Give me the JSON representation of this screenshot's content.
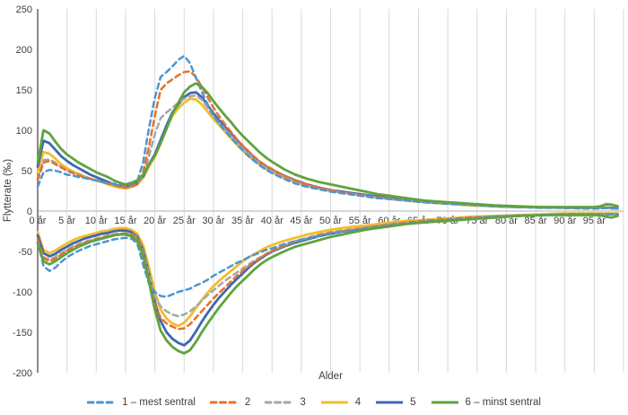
{
  "chart_data": {
    "type": "line",
    "title": "",
    "xlabel": "Alder",
    "ylabel": "Flytterate (‰)",
    "ylim": [
      -200,
      250
    ],
    "x_max": 100,
    "grid": "vertical-only",
    "legend_position": "bottom",
    "y_ticks": [
      250,
      200,
      150,
      100,
      50,
      0,
      -50,
      -100,
      -150,
      -200
    ],
    "x_tick_labels": [
      "0 år",
      "5 år",
      "10 år",
      "15 år",
      "20 år",
      "25 år",
      "30 år",
      "35 år",
      "40 år",
      "45 år",
      "50 år",
      "55 år",
      "60 år",
      "65 år",
      "70 år",
      "75 år",
      "80 år",
      "85 år",
      "90 år",
      "95 år"
    ],
    "axis_colors": {
      "grid": "#d9d9d9",
      "zero_line": "#bfbfbf",
      "y_axis": "#595959",
      "text": "#404040"
    },
    "ages": [
      0,
      1,
      2,
      3,
      4,
      5,
      6,
      7,
      8,
      9,
      10,
      11,
      12,
      13,
      14,
      15,
      16,
      17,
      18,
      19,
      20,
      21,
      22,
      23,
      24,
      25,
      26,
      27,
      28,
      29,
      30,
      31,
      32,
      33,
      34,
      35,
      36,
      37,
      38,
      39,
      40,
      42,
      44,
      46,
      48,
      50,
      52,
      54,
      56,
      58,
      60,
      63,
      66,
      70,
      74,
      78,
      82,
      86,
      90,
      93,
      95,
      96,
      97,
      98,
      99
    ],
    "series": [
      {
        "name": "1 – mest sentral",
        "color": "#4C96D2",
        "dashed": true,
        "in_rate": [
          30,
          48,
          51,
          50,
          48,
          45,
          44,
          42,
          41,
          39,
          38,
          36,
          35,
          34,
          33,
          32,
          33,
          37,
          60,
          103,
          140,
          166,
          172,
          179,
          187,
          192,
          183,
          165,
          148,
          132,
          118,
          108,
          99,
          91,
          83,
          75,
          68,
          62,
          56,
          51,
          47,
          40,
          34,
          30,
          27,
          24,
          22,
          20,
          18,
          16,
          15,
          13,
          11,
          9,
          8,
          6,
          5,
          4,
          4,
          3,
          3,
          3,
          4,
          3,
          3
        ],
        "out_rate": [
          -38,
          -68,
          -74,
          -70,
          -63,
          -57,
          -53,
          -49,
          -46,
          -43,
          -41,
          -39,
          -37,
          -35,
          -34,
          -33,
          -34,
          -40,
          -66,
          -90,
          -100,
          -105,
          -106,
          -103,
          -100,
          -98,
          -96,
          -92,
          -89,
          -85,
          -80,
          -76,
          -72,
          -68,
          -64,
          -61,
          -57,
          -54,
          -51,
          -48,
          -46,
          -41,
          -37,
          -34,
          -31,
          -28,
          -26,
          -24,
          -22,
          -20,
          -18,
          -15,
          -13,
          -11,
          -9,
          -7,
          -6,
          -5,
          -4,
          -4,
          -4,
          -4,
          -4,
          -4,
          -5
        ]
      },
      {
        "name": "2",
        "color": "#E8702A",
        "dashed": true,
        "in_rate": [
          38,
          60,
          62,
          58,
          54,
          50,
          47,
          44,
          42,
          40,
          38,
          36,
          34,
          32,
          30,
          29,
          30,
          33,
          48,
          80,
          118,
          150,
          158,
          163,
          168,
          172,
          173,
          166,
          154,
          141,
          128,
          117,
          107,
          98,
          89,
          81,
          74,
          67,
          61,
          56,
          52,
          44,
          38,
          33,
          29,
          26,
          23,
          21,
          19,
          17,
          16,
          13,
          11,
          9,
          8,
          6,
          5,
          5,
          4,
          4,
          4,
          4,
          4,
          3,
          3
        ],
        "out_rate": [
          -35,
          -58,
          -62,
          -59,
          -54,
          -49,
          -45,
          -42,
          -39,
          -37,
          -35,
          -33,
          -31,
          -29,
          -28,
          -28,
          -29,
          -34,
          -52,
          -85,
          -115,
          -132,
          -139,
          -143,
          -146,
          -145,
          -140,
          -132,
          -124,
          -116,
          -108,
          -101,
          -94,
          -87,
          -80,
          -74,
          -68,
          -63,
          -58,
          -53,
          -49,
          -43,
          -38,
          -34,
          -30,
          -27,
          -25,
          -23,
          -21,
          -19,
          -17,
          -14,
          -12,
          -10,
          -8,
          -7,
          -6,
          -5,
          -4,
          -4,
          -4,
          -5,
          -4,
          -4,
          -4
        ]
      },
      {
        "name": "3",
        "color": "#A6A6A6",
        "dashed": true,
        "in_rate": [
          40,
          63,
          64,
          60,
          55,
          51,
          48,
          45,
          42,
          40,
          38,
          36,
          34,
          32,
          30,
          29,
          30,
          33,
          44,
          68,
          95,
          115,
          122,
          128,
          134,
          139,
          142,
          143,
          138,
          128,
          118,
          109,
          101,
          93,
          85,
          78,
          71,
          65,
          59,
          54,
          50,
          43,
          37,
          32,
          28,
          25,
          23,
          21,
          19,
          17,
          15,
          13,
          11,
          9,
          7,
          6,
          5,
          4,
          4,
          4,
          4,
          4,
          4,
          3,
          3
        ],
        "out_rate": [
          -35,
          -57,
          -60,
          -57,
          -52,
          -48,
          -44,
          -41,
          -38,
          -36,
          -34,
          -32,
          -30,
          -29,
          -28,
          -27,
          -28,
          -33,
          -50,
          -80,
          -105,
          -118,
          -124,
          -128,
          -130,
          -128,
          -124,
          -118,
          -111,
          -104,
          -98,
          -92,
          -86,
          -81,
          -76,
          -71,
          -66,
          -61,
          -57,
          -53,
          -49,
          -43,
          -37,
          -33,
          -29,
          -26,
          -24,
          -22,
          -20,
          -18,
          -16,
          -14,
          -12,
          -10,
          -8,
          -6,
          -5,
          -5,
          -4,
          -4,
          -4,
          -4,
          -4,
          -4,
          -4
        ]
      },
      {
        "name": "4",
        "color": "#F2BE2B",
        "dashed": false,
        "in_rate": [
          48,
          73,
          71,
          65,
          58,
          53,
          49,
          46,
          43,
          40,
          38,
          36,
          33,
          31,
          29,
          28,
          30,
          33,
          41,
          55,
          68,
          85,
          103,
          118,
          127,
          134,
          139,
          138,
          132,
          123,
          114,
          106,
          98,
          90,
          82,
          75,
          68,
          62,
          57,
          52,
          48,
          41,
          36,
          31,
          28,
          25,
          23,
          21,
          19,
          17,
          15,
          13,
          11,
          9,
          7,
          6,
          5,
          5,
          4,
          4,
          4,
          5,
          9,
          8,
          5
        ],
        "out_rate": [
          -26,
          -48,
          -52,
          -49,
          -44,
          -40,
          -36,
          -33,
          -31,
          -29,
          -27,
          -25,
          -24,
          -22,
          -21,
          -21,
          -23,
          -28,
          -42,
          -70,
          -100,
          -122,
          -133,
          -139,
          -142,
          -138,
          -130,
          -120,
          -110,
          -101,
          -93,
          -86,
          -80,
          -74,
          -68,
          -62,
          -57,
          -53,
          -49,
          -45,
          -42,
          -37,
          -33,
          -29,
          -26,
          -23,
          -21,
          -19,
          -18,
          -16,
          -14,
          -12,
          -11,
          -9,
          -7,
          -6,
          -5,
          -4,
          -3,
          -3,
          -3,
          -3,
          -3,
          -3,
          -3
        ]
      },
      {
        "name": "5",
        "color": "#3E68B0",
        "dashed": false,
        "in_rate": [
          55,
          87,
          84,
          76,
          68,
          62,
          57,
          53,
          49,
          45,
          42,
          39,
          36,
          33,
          31,
          30,
          32,
          35,
          43,
          58,
          70,
          88,
          106,
          122,
          132,
          141,
          146,
          147,
          141,
          131,
          121,
          112,
          104,
          96,
          88,
          80,
          73,
          66,
          60,
          55,
          51,
          44,
          38,
          33,
          29,
          26,
          24,
          22,
          20,
          18,
          16,
          14,
          12,
          10,
          8,
          6,
          5,
          5,
          4,
          4,
          4,
          4,
          4,
          4,
          3
        ],
        "out_rate": [
          -30,
          -52,
          -56,
          -53,
          -48,
          -44,
          -40,
          -37,
          -34,
          -32,
          -30,
          -28,
          -27,
          -25,
          -24,
          -24,
          -26,
          -32,
          -48,
          -78,
          -112,
          -136,
          -150,
          -158,
          -163,
          -166,
          -160,
          -149,
          -137,
          -126,
          -116,
          -107,
          -99,
          -91,
          -84,
          -77,
          -70,
          -64,
          -59,
          -54,
          -50,
          -44,
          -39,
          -35,
          -31,
          -28,
          -25,
          -23,
          -21,
          -19,
          -17,
          -15,
          -13,
          -11,
          -9,
          -7,
          -6,
          -5,
          -4,
          -4,
          -4,
          -4,
          -4,
          -4,
          -4
        ]
      },
      {
        "name": "6 – minst sentral",
        "color": "#5FA33C",
        "dashed": false,
        "in_rate": [
          60,
          100,
          96,
          86,
          77,
          70,
          65,
          60,
          56,
          52,
          48,
          45,
          42,
          38,
          35,
          33,
          35,
          38,
          45,
          58,
          68,
          84,
          102,
          120,
          134,
          147,
          154,
          158,
          154,
          146,
          136,
          127,
          118,
          110,
          101,
          93,
          86,
          79,
          72,
          66,
          61,
          52,
          45,
          40,
          36,
          33,
          30,
          27,
          24,
          21,
          19,
          16,
          13,
          11,
          9,
          7,
          6,
          5,
          5,
          5,
          5,
          6,
          8,
          8,
          6
        ],
        "out_rate": [
          -40,
          -62,
          -66,
          -62,
          -57,
          -52,
          -48,
          -44,
          -41,
          -38,
          -36,
          -34,
          -32,
          -30,
          -29,
          -29,
          -31,
          -37,
          -55,
          -88,
          -122,
          -148,
          -160,
          -168,
          -173,
          -176,
          -172,
          -162,
          -150,
          -139,
          -129,
          -119,
          -110,
          -101,
          -93,
          -86,
          -79,
          -72,
          -66,
          -61,
          -57,
          -50,
          -44,
          -40,
          -36,
          -32,
          -29,
          -26,
          -23,
          -21,
          -19,
          -16,
          -14,
          -12,
          -10,
          -8,
          -6,
          -5,
          -5,
          -5,
          -5,
          -5,
          -7,
          -8,
          -6
        ]
      }
    ]
  }
}
